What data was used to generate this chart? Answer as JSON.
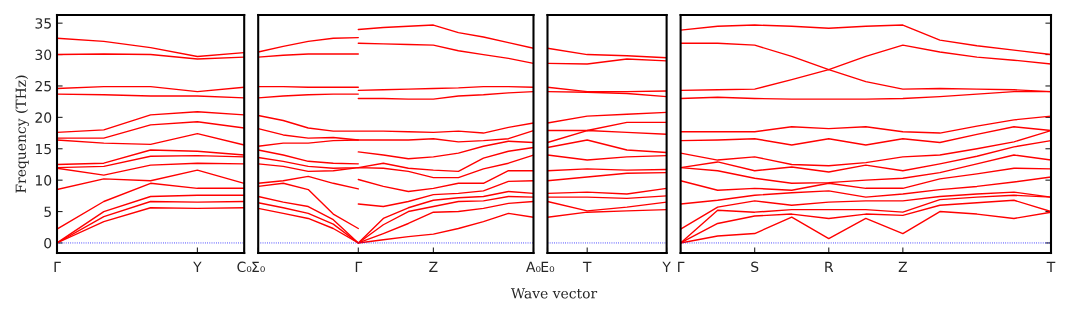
{
  "chart_data": [
    {
      "type": "line",
      "ylabel": "Frequency (THz)",
      "categories": [
        "Γ",
        null,
        null,
        "Y",
        "C₀"
      ],
      "ylim": [
        -1.6,
        36.3
      ],
      "yticks": [
        0,
        5,
        10,
        15,
        20,
        25,
        30,
        35
      ],
      "ref_lines": [
        {
          "axis": "y",
          "value": 0,
          "color": "#0000ff",
          "line_style": "dotted"
        }
      ],
      "series": [
        {
          "color": "#ff0000",
          "values": [
            0,
            3.4,
            5.6,
            5.5,
            5.6
          ]
        },
        {
          "color": "#ff0000",
          "values": [
            0,
            4.2,
            6.6,
            6.5,
            6.6
          ]
        },
        {
          "color": "#ff0000",
          "values": [
            0,
            5.0,
            7.4,
            7.6,
            7.6
          ]
        },
        {
          "color": "#ff0000",
          "values": [
            2.2,
            6.6,
            9.5,
            8.7,
            8.7
          ]
        },
        {
          "color": "#ff0000",
          "values": [
            8.5,
            10.2,
            9.9,
            11.6,
            9.5
          ]
        },
        {
          "color": "#ff0000",
          "values": [
            11.9,
            10.8,
            12.4,
            12.7,
            12.6
          ]
        },
        {
          "color": "#ff0000",
          "values": [
            12.0,
            12.2,
            13.8,
            13.9,
            13.7
          ]
        },
        {
          "color": "#ff0000",
          "values": [
            12.5,
            12.7,
            14.8,
            14.6,
            14.0
          ]
        },
        {
          "color": "#ff0000",
          "values": [
            16.4,
            15.9,
            15.7,
            17.4,
            15.6
          ]
        },
        {
          "color": "#ff0000",
          "values": [
            16.7,
            16.7,
            18.8,
            19.3,
            18.3
          ]
        },
        {
          "color": "#ff0000",
          "values": [
            17.6,
            18.0,
            20.4,
            20.9,
            20.4
          ]
        },
        {
          "color": "#ff0000",
          "values": [
            23.7,
            23.6,
            23.4,
            23.4,
            23.1
          ]
        },
        {
          "color": "#ff0000",
          "values": [
            24.6,
            24.9,
            24.9,
            24.1,
            24.8
          ]
        },
        {
          "color": "#ff0000",
          "values": [
            30.0,
            30.1,
            30.0,
            29.3,
            29.6
          ]
        },
        {
          "color": "#ff0000",
          "values": [
            32.6,
            32.1,
            31.1,
            29.7,
            30.3
          ]
        }
      ]
    },
    {
      "type": "line",
      "xlabel": "Wave vector",
      "tick_labels": "x",
      "categories": [
        "Σ₀",
        null,
        null,
        null,
        "Γ",
        null,
        null,
        "Z",
        null,
        null,
        null,
        "A₀"
      ],
      "ylim": [
        -1.6,
        36.3
      ],
      "ref_lines": [
        {
          "axis": "y",
          "value": 0,
          "color": "#0000ff",
          "line_style": "dotted"
        }
      ],
      "series": [
        {
          "color": "#ff0000",
          "values": [
            5.5,
            4.7,
            3.9,
            2.3,
            0,
            0.5,
            1.0,
            1.4,
            2.3,
            3.4,
            4.7,
            4.1
          ]
        },
        {
          "color": "#ff0000",
          "values": [
            6.4,
            5.6,
            4.7,
            3.0,
            0,
            1.5,
            3.1,
            4.9,
            5.0,
            5.5,
            6.3,
            6.6
          ]
        },
        {
          "color": "#ff0000",
          "values": [
            7.4,
            6.5,
            5.8,
            3.7,
            0,
            2.9,
            5.0,
            5.8,
            6.6,
            6.7,
            7.4,
            7.3
          ]
        },
        {
          "color": "#ff0000",
          "values": [
            9.0,
            9.5,
            8.5,
            4.6,
            2.3,
            null,
            null,
            null,
            null,
            null,
            null,
            null
          ]
        },
        {
          "color": "#ff0000",
          "values": [
            9.5,
            9.9,
            10.6,
            9.5,
            8.6,
            null,
            null,
            null,
            null,
            null,
            null,
            null
          ]
        },
        {
          "color": "#ff0000",
          "values": [
            12.6,
            12.2,
            11.4,
            11.5,
            12.0,
            11.9,
            11.4,
            10.4,
            10.4,
            11.8,
            12.7,
            14.0
          ]
        },
        {
          "color": "#ff0000",
          "values": [
            13.6,
            13.0,
            12.2,
            11.9,
            12.0,
            12.7,
            11.9,
            11.6,
            11.4,
            13.5,
            14.6,
            15.2
          ]
        },
        {
          "color": "#ff0000",
          "values": [
            14.8,
            14.0,
            13.0,
            12.7,
            12.6,
            null,
            null,
            null,
            null,
            null,
            null,
            null
          ]
        },
        {
          "color": "#ff0000",
          "values": [
            15.4,
            15.9,
            15.9,
            16.3,
            16.4,
            16.4,
            16.4,
            16.6,
            16.1,
            16.3,
            16.6,
            17.9
          ]
        },
        {
          "color": "#ff0000",
          "values": [
            18.2,
            17.2,
            16.7,
            16.8,
            16.4,
            null,
            null,
            null,
            null,
            null,
            null,
            null
          ]
        },
        {
          "color": "#ff0000",
          "values": [
            20.3,
            19.5,
            18.3,
            17.8,
            17.8,
            17.8,
            17.7,
            17.6,
            17.8,
            17.5,
            18.4,
            19.1
          ]
        },
        {
          "color": "#ff0000",
          "values": [
            23.1,
            23.4,
            23.6,
            23.7,
            23.7,
            null,
            null,
            null,
            null,
            null,
            null,
            null
          ]
        },
        {
          "color": "#ff0000",
          "values": [
            24.9,
            24.9,
            24.8,
            24.8,
            24.8,
            null,
            null,
            null,
            null,
            null,
            null,
            null
          ]
        },
        {
          "color": "#ff0000",
          "values": [
            29.6,
            29.9,
            30.1,
            30.1,
            30.1,
            null,
            null,
            null,
            null,
            null,
            null,
            null
          ]
        },
        {
          "color": "#ff0000",
          "values": [
            30.4,
            31.3,
            32.1,
            32.6,
            32.7,
            null,
            null,
            null,
            null,
            null,
            null,
            null
          ]
        },
        {
          "color": "#ff0000",
          "values": [
            null,
            null,
            null,
            null,
            0,
            3.9,
            5.6,
            6.8,
            7.2,
            7.4,
            8.2,
            7.9
          ]
        },
        {
          "color": "#ff0000",
          "values": [
            null,
            null,
            null,
            null,
            6.2,
            5.8,
            6.6,
            7.7,
            7.9,
            8.3,
            9.8,
            9.9
          ]
        },
        {
          "color": "#ff0000",
          "values": [
            null,
            null,
            null,
            null,
            10.1,
            9.0,
            8.2,
            8.7,
            9.5,
            9.5,
            11.5,
            11.5
          ]
        },
        {
          "color": "#ff0000",
          "values": [
            null,
            null,
            null,
            null,
            14.5,
            14.0,
            13.4,
            13.7,
            14.3,
            15.4,
            16.2,
            16.0
          ]
        },
        {
          "color": "#ff0000",
          "values": [
            null,
            null,
            null,
            null,
            23.0,
            23.0,
            22.9,
            22.9,
            23.4,
            23.6,
            23.9,
            24.1
          ]
        },
        {
          "color": "#ff0000",
          "values": [
            null,
            null,
            null,
            null,
            24.3,
            24.4,
            24.5,
            24.6,
            24.7,
            24.9,
            24.9,
            24.8
          ]
        },
        {
          "color": "#ff0000",
          "values": [
            null,
            null,
            null,
            null,
            31.8,
            31.7,
            31.6,
            31.5,
            30.6,
            30.0,
            29.4,
            28.6
          ]
        },
        {
          "color": "#ff0000",
          "values": [
            null,
            null,
            null,
            null,
            34.0,
            34.3,
            34.5,
            34.7,
            33.5,
            32.8,
            31.9,
            31.0
          ]
        }
      ]
    },
    {
      "type": "line",
      "tick_labels": "x",
      "categories": [
        "E₀",
        "T",
        null,
        "Y"
      ],
      "ylim": [
        -1.6,
        36.3
      ],
      "ref_lines": [
        {
          "axis": "y",
          "value": 0,
          "color": "#0000ff",
          "line_style": "dotted"
        }
      ],
      "series": [
        {
          "color": "#ff0000",
          "values": [
            4.1,
            4.9,
            5.1,
            5.3
          ]
        },
        {
          "color": "#ff0000",
          "values": [
            6.6,
            5.1,
            5.7,
            6.5
          ]
        },
        {
          "color": "#ff0000",
          "values": [
            7.3,
            7.3,
            7.1,
            7.5
          ]
        },
        {
          "color": "#ff0000",
          "values": [
            7.9,
            8.1,
            7.8,
            8.7
          ]
        },
        {
          "color": "#ff0000",
          "values": [
            9.9,
            10.5,
            11.1,
            11.2
          ]
        },
        {
          "color": "#ff0000",
          "values": [
            11.5,
            11.8,
            11.6,
            11.7
          ]
        },
        {
          "color": "#ff0000",
          "values": [
            14.0,
            13.2,
            13.7,
            13.9
          ]
        },
        {
          "color": "#ff0000",
          "values": [
            15.2,
            16.4,
            14.8,
            14.4
          ]
        },
        {
          "color": "#ff0000",
          "values": [
            16.0,
            17.9,
            17.6,
            17.3
          ]
        },
        {
          "color": "#ff0000",
          "values": [
            17.9,
            17.9,
            19.2,
            19.2
          ]
        },
        {
          "color": "#ff0000",
          "values": [
            19.1,
            20.2,
            20.5,
            20.8
          ]
        },
        {
          "color": "#ff0000",
          "values": [
            24.1,
            24.0,
            23.8,
            23.3
          ]
        },
        {
          "color": "#ff0000",
          "values": [
            24.8,
            24.1,
            24.1,
            24.2
          ]
        },
        {
          "color": "#ff0000",
          "values": [
            28.6,
            28.5,
            29.3,
            29.0
          ]
        },
        {
          "color": "#ff0000",
          "values": [
            31.0,
            30.0,
            29.8,
            29.5
          ]
        }
      ]
    },
    {
      "type": "line",
      "tick_labels": "x",
      "categories": [
        "Γ",
        null,
        "S",
        null,
        "R",
        null,
        "Z",
        null,
        null,
        null,
        "T"
      ],
      "ylim": [
        -1.6,
        36.3
      ],
      "yticks": [
        {
          "value": 0,
          "label": null
        },
        {
          "value": 5,
          "label": null
        },
        {
          "value": 10,
          "label": null
        },
        {
          "value": 15,
          "label": null
        },
        {
          "value": 20,
          "label": null
        },
        {
          "value": 25,
          "label": null
        },
        {
          "value": 30,
          "label": null
        },
        {
          "value": 35,
          "label": null
        }
      ],
      "ref_lines": [
        {
          "axis": "y",
          "value": 0,
          "color": "#0000ff",
          "line_style": "dotted"
        }
      ],
      "series": [
        {
          "color": "#ff0000",
          "values": [
            0,
            1.1,
            1.5,
            4.1,
            0.7,
            3.9,
            1.5,
            5.0,
            4.6,
            3.9,
            4.9
          ]
        },
        {
          "color": "#ff0000",
          "values": [
            0,
            3.1,
            4.3,
            4.6,
            3.9,
            4.6,
            4.4,
            6.0,
            6.4,
            6.8,
            5.0
          ]
        },
        {
          "color": "#ff0000",
          "values": [
            0,
            5.2,
            4.9,
            5.3,
            5.3,
            5.3,
            4.9,
            6.9,
            7.3,
            7.6,
            7.3
          ]
        },
        {
          "color": "#ff0000",
          "values": [
            2.2,
            5.7,
            6.7,
            6.0,
            6.5,
            6.7,
            6.7,
            7.4,
            7.8,
            8.1,
            7.3
          ]
        },
        {
          "color": "#ff0000",
          "values": [
            6.2,
            6.8,
            7.6,
            8.0,
            8.3,
            7.3,
            7.8,
            8.5,
            9.0,
            9.7,
            10.5
          ]
        },
        {
          "color": "#ff0000",
          "values": [
            9.9,
            8.4,
            8.7,
            8.4,
            9.5,
            8.7,
            8.7,
            10.2,
            11.0,
            11.9,
            11.8
          ]
        },
        {
          "color": "#ff0000",
          "values": [
            12.0,
            11.5,
            10.3,
            9.5,
            9.6,
            10.0,
            10.3,
            11.2,
            12.6,
            14.0,
            13.2
          ]
        },
        {
          "color": "#ff0000",
          "values": [
            12.0,
            12.9,
            11.5,
            12.1,
            11.3,
            12.4,
            11.5,
            12.6,
            13.8,
            15.3,
            16.3
          ]
        },
        {
          "color": "#ff0000",
          "values": [
            14.3,
            13.2,
            13.7,
            12.5,
            12.3,
            12.8,
            13.7,
            14.0,
            15.0,
            16.1,
            17.9
          ]
        },
        {
          "color": "#ff0000",
          "values": [
            16.3,
            16.4,
            16.6,
            15.6,
            16.6,
            15.6,
            16.6,
            16.0,
            17.3,
            18.5,
            17.9
          ]
        },
        {
          "color": "#ff0000",
          "values": [
            17.7,
            17.7,
            17.7,
            18.5,
            18.2,
            18.5,
            17.7,
            17.5,
            18.6,
            19.6,
            20.2
          ]
        },
        {
          "color": "#ff0000",
          "values": [
            23.0,
            23.2,
            23.0,
            22.9,
            22.9,
            22.9,
            23.0,
            23.3,
            23.7,
            24.1,
            24.1
          ]
        },
        {
          "color": "#ff0000",
          "values": [
            24.3,
            24.4,
            24.5,
            26.0,
            27.6,
            25.7,
            24.5,
            24.6,
            24.5,
            24.4,
            24.1
          ]
        },
        {
          "color": "#ff0000",
          "values": [
            31.8,
            31.8,
            31.5,
            29.7,
            27.6,
            29.7,
            31.5,
            30.4,
            29.6,
            29.1,
            28.5
          ]
        },
        {
          "color": "#ff0000",
          "values": [
            33.9,
            34.5,
            34.7,
            34.5,
            34.2,
            34.5,
            34.7,
            32.3,
            31.4,
            30.7,
            30.0
          ]
        }
      ]
    }
  ]
}
